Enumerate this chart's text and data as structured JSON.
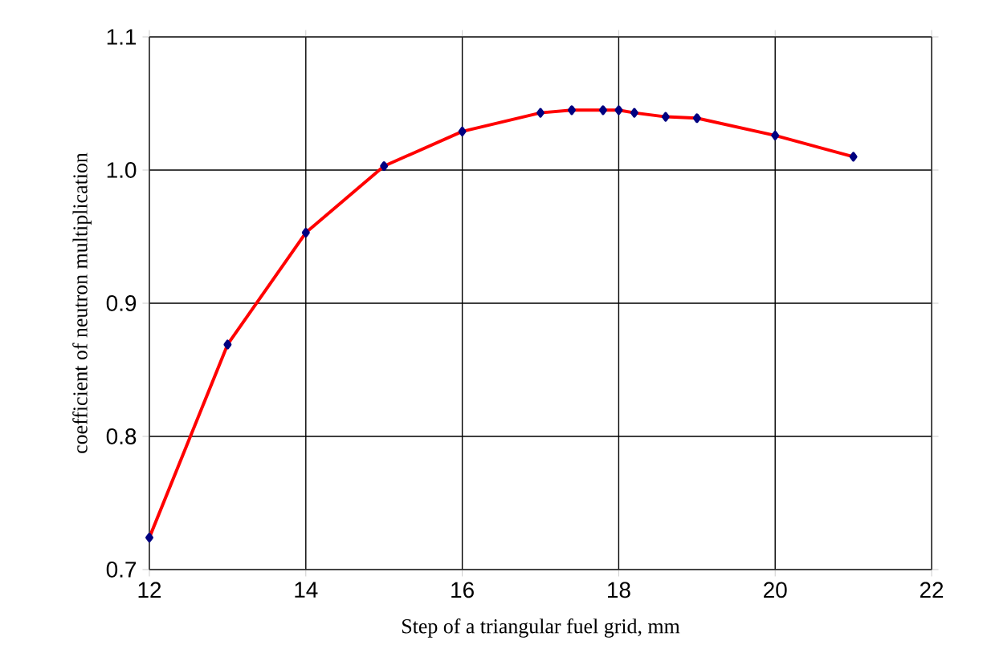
{
  "chart_data": {
    "type": "line",
    "xlabel": "Step of a triangular fuel grid, mm",
    "ylabel": "coefficient of neutron multiplication",
    "x": [
      12,
      13,
      14,
      15,
      16,
      17,
      17.4,
      17.8,
      18,
      18.2,
      18.6,
      19,
      20,
      21
    ],
    "series": [
      {
        "color": "#ff0000",
        "values": [
          0.724,
          0.869,
          0.953,
          1.003,
          1.029,
          1.043,
          1.045,
          1.045,
          1.045,
          1.043,
          1.04,
          1.039,
          1.026,
          1.01
        ]
      }
    ],
    "xlim": [
      12,
      22
    ],
    "xticks": [
      12,
      14,
      16,
      18,
      20,
      22
    ],
    "ylim": [
      0.7,
      1.1
    ],
    "yticks": [
      {
        "value": 0.7,
        "label": "0.7"
      },
      {
        "value": 0.8,
        "label": "0.8"
      },
      {
        "value": 0.9,
        "label": "0.9"
      },
      {
        "value": 1.0,
        "label": "1.0"
      },
      {
        "value": 1.1,
        "label": "1.1"
      }
    ],
    "grid": true,
    "marker": "diamond",
    "line_style": "solid"
  }
}
